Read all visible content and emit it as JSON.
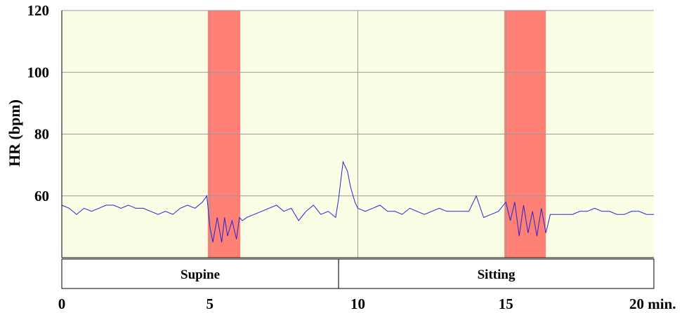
{
  "chart_data": {
    "type": "line",
    "ylabel": "HR (bpm)",
    "ylim": [
      40,
      120
    ],
    "xlim": [
      0,
      20
    ],
    "y_ticks": [
      "60",
      "80",
      "100",
      "120"
    ],
    "x_ticks": [
      "0",
      "5",
      "10",
      "15",
      "20 min."
    ],
    "grid": true,
    "plot_background": "#fbfde5",
    "line_color": "#2424d6",
    "band_color": "#ff8074",
    "highlight_bands": [
      {
        "start": 4.93,
        "end": 6.03
      },
      {
        "start": 14.95,
        "end": 16.35
      }
    ],
    "segments": [
      {
        "label": "Supine",
        "start": 0,
        "end": 9.35
      },
      {
        "label": "Sitting",
        "start": 9.35,
        "end": 20
      }
    ],
    "series": [
      {
        "x": [
          0,
          0.25,
          0.5,
          0.75,
          1,
          1.25,
          1.5,
          1.75,
          2,
          2.25,
          2.5,
          2.75,
          3,
          3.25,
          3.5,
          3.75,
          4,
          4.25,
          4.5,
          4.75,
          4.9,
          5.0,
          5.1,
          5.25,
          5.4,
          5.5,
          5.6,
          5.75,
          5.9,
          6.0,
          6.1,
          6.25,
          6.5,
          6.75,
          7,
          7.25,
          7.5,
          7.75,
          8,
          8.25,
          8.5,
          8.75,
          9,
          9.25,
          9.35,
          9.5,
          9.65,
          9.75,
          9.9,
          10,
          10.25,
          10.5,
          10.75,
          11,
          11.25,
          11.5,
          11.75,
          12,
          12.25,
          12.5,
          12.75,
          13,
          13.25,
          13.5,
          13.75,
          14,
          14.25,
          14.5,
          14.75,
          15,
          15.15,
          15.3,
          15.45,
          15.6,
          15.75,
          15.9,
          16.05,
          16.2,
          16.35,
          16.5,
          16.75,
          17,
          17.25,
          17.5,
          17.75,
          18,
          18.25,
          18.5,
          18.75,
          19,
          19.25,
          19.5,
          19.75,
          20
        ],
        "y": [
          57,
          56,
          54,
          56,
          55,
          56,
          57,
          57,
          56,
          57,
          56,
          56,
          55,
          54,
          55,
          54,
          56,
          57,
          56,
          58,
          60,
          50,
          45,
          53,
          45,
          53,
          47,
          52,
          46,
          53,
          52,
          53,
          54,
          55,
          56,
          57,
          55,
          56,
          52,
          55,
          57,
          54,
          55,
          53,
          59,
          71,
          68,
          63,
          58,
          56,
          55,
          56,
          57,
          55,
          55,
          54,
          56,
          55,
          54,
          55,
          56,
          55,
          55,
          55,
          55,
          60,
          53,
          54,
          55,
          58,
          52,
          58,
          47,
          57,
          48,
          55,
          47,
          56,
          48,
          54,
          54,
          54,
          54,
          55,
          55,
          56,
          55,
          55,
          54,
          54,
          55,
          55,
          54,
          54
        ]
      }
    ]
  }
}
